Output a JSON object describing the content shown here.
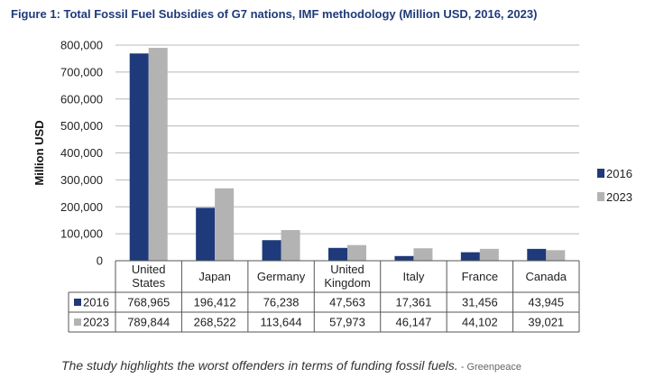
{
  "chart_data": {
    "type": "bar",
    "title": "Figure 1: Total Fossil Fuel Subsidies of G7 nations, IMF methodology (Million USD, 2016, 2023)",
    "ylabel": "Million USD",
    "xlabel": "",
    "ylim": [
      0,
      800000
    ],
    "yticks": [
      "0",
      "100,000",
      "200,000",
      "300,000",
      "400,000",
      "500,000",
      "600,000",
      "700,000",
      "800,000"
    ],
    "ytick_values": [
      0,
      100000,
      200000,
      300000,
      400000,
      500000,
      600000,
      700000,
      800000
    ],
    "grid": true,
    "legend_position": "right",
    "categories": [
      "United States",
      "Japan",
      "Germany",
      "United Kingdom",
      "Italy",
      "France",
      "Canada"
    ],
    "series": [
      {
        "name": "2016",
        "color": "#1f3a7a",
        "values": [
          768965,
          196412,
          76238,
          47563,
          17361,
          31456,
          43945
        ],
        "labels": [
          "768,965",
          "196,412",
          "76,238",
          "47,563",
          "17,361",
          "31,456",
          "43,945"
        ]
      },
      {
        "name": "2023",
        "color": "#b3b3b3",
        "values": [
          789844,
          268522,
          113644,
          57973,
          46147,
          44102,
          39021
        ],
        "labels": [
          "789,844",
          "268,522",
          "113,644",
          "57,973",
          "46,147",
          "44,102",
          "39,021"
        ]
      }
    ]
  },
  "caption": {
    "text": "The study highlights the worst offenders in terms of funding fossil fuels.",
    "source": " - Greenpeace"
  }
}
